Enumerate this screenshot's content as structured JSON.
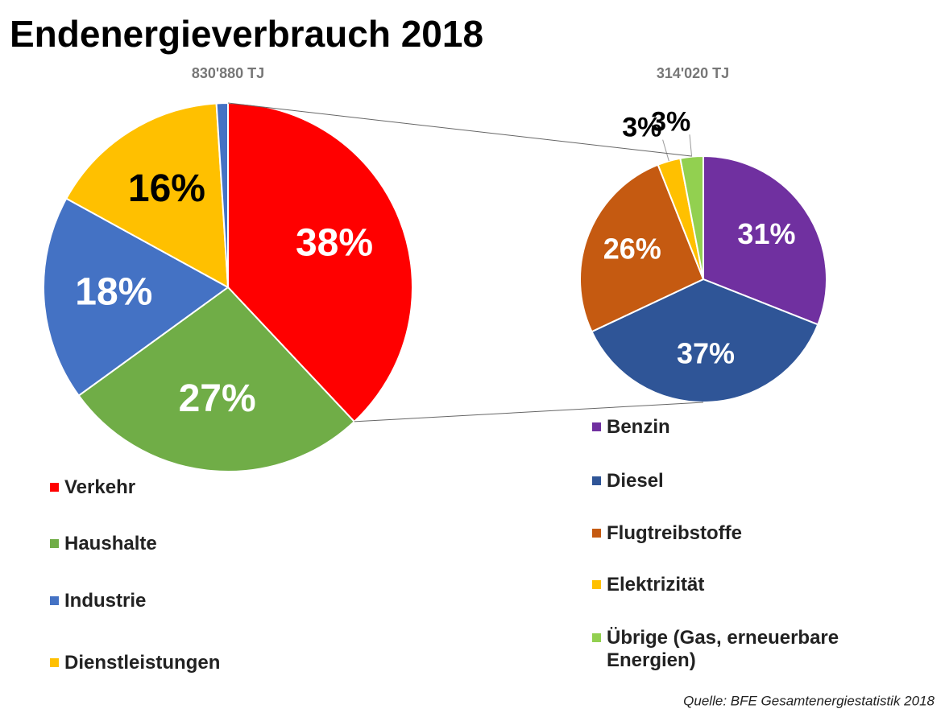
{
  "title": "Endenergieverbrauch 2018",
  "source": "Quelle: BFE Gesamtenergiestatistik 2018",
  "chart_data": [
    {
      "type": "pie",
      "subtitle": "830'880 TJ",
      "categories": [
        "Verkehr",
        "Haushalte",
        "Industrie",
        "Dienstleistungen",
        null
      ],
      "values": [
        38,
        27,
        18,
        16,
        1
      ],
      "value_labels": [
        "38%",
        "27%",
        "18%",
        "16%",
        null
      ],
      "colors": [
        "#ff0000",
        "#70ad47",
        "#4472c4",
        "#ffc000",
        "#4472c4"
      ]
    },
    {
      "type": "pie",
      "subtitle": "314'020 TJ",
      "categories": [
        "Benzin",
        "Diesel",
        "Flugtreibstoffe",
        "Elektrizität",
        "Übrige (Gas, erneuerbare Energien)"
      ],
      "values": [
        31,
        37,
        26,
        3,
        3
      ],
      "value_labels": [
        "31%",
        "37%",
        "26%",
        "3%",
        "3%"
      ],
      "colors": [
        "#7030a0",
        "#2f5597",
        "#c55a11",
        "#ffc000",
        "#92d050"
      ]
    }
  ]
}
